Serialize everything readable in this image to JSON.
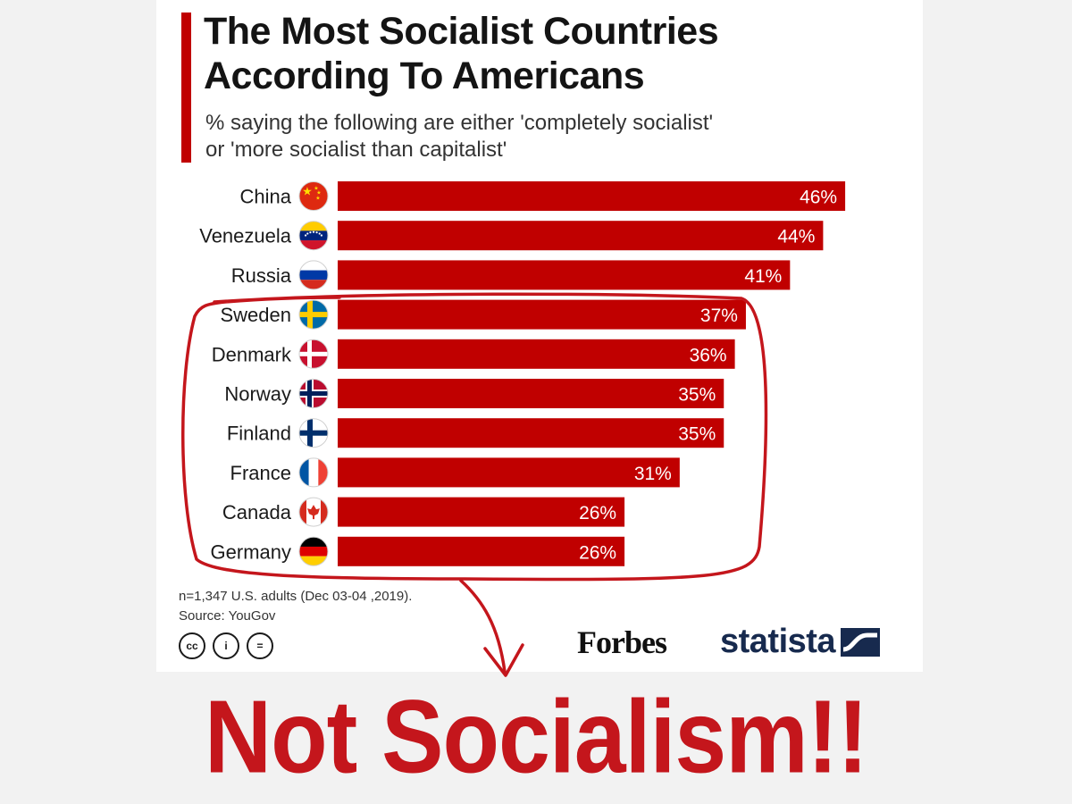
{
  "title_line1": "The Most Socialist Countries",
  "title_line2": "According To Americans",
  "subtitle_line1": "% saying the following are either 'completely socialist'",
  "subtitle_line2": "or 'more socialist than capitalist'",
  "note_line1": "n=1,347 U.S. adults (Dec 03-04 ,2019).",
  "note_line2": "Source: YouGov",
  "license": {
    "cc": "cc",
    "by": "i",
    "nd": "="
  },
  "brands": {
    "forbes": "Forbes",
    "statista": "statista"
  },
  "caption": "Not Socialism!!",
  "colors": {
    "bar": "#c00000",
    "accent": "#c00000",
    "caption": "#c4161c",
    "statista": "#172a4e"
  },
  "chart_data": {
    "type": "bar",
    "orientation": "horizontal",
    "categories": [
      "China",
      "Venezuela",
      "Russia",
      "Sweden",
      "Denmark",
      "Norway",
      "Finland",
      "France",
      "Canada",
      "Germany"
    ],
    "values": [
      46,
      44,
      41,
      37,
      36,
      35,
      35,
      31,
      26,
      26
    ],
    "value_labels": [
      "46%",
      "44%",
      "41%",
      "37%",
      "36%",
      "35%",
      "35%",
      "31%",
      "26%",
      "26%"
    ],
    "flags": [
      "china-flag-icon",
      "venezuela-flag-icon",
      "russia-flag-icon",
      "sweden-flag-icon",
      "denmark-flag-icon",
      "norway-flag-icon",
      "finland-flag-icon",
      "france-flag-icon",
      "canada-flag-icon",
      "germany-flag-icon"
    ],
    "annotation": {
      "type": "hand-drawn-ellipse-with-arrow",
      "encircles": [
        "Sweden",
        "Denmark",
        "Norway",
        "Finland",
        "France",
        "Canada",
        "Germany"
      ],
      "color": "#c4161c"
    }
  }
}
